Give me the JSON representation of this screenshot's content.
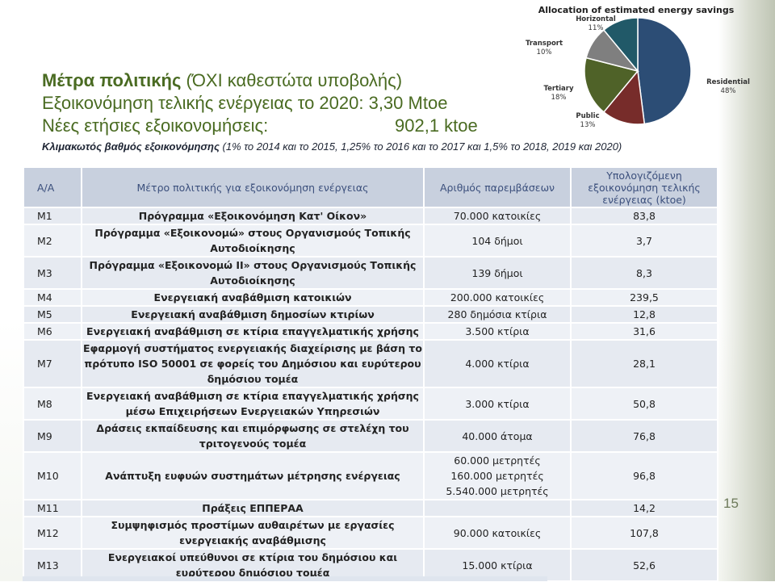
{
  "title": {
    "line1_bold": "Μέτρα πολιτικής",
    "line1_rest": " (ΌΧΙ καθεστώτα υποβολής)",
    "line2": "Εξοικονόμηση τελικής ενέργειας το 2020: 3,30 Mtoe",
    "line3_label": "Νέες ετήσιες εξοικονομήσεις:",
    "line3_value": "902,1 ktoe",
    "subtitle_bold": "Κλιμακωτός βαθμός εξοικονόμησης",
    "subtitle_rest": " (1% το 2014 και το 2015, 1,25% το 2016 και το 2017 και 1,5% το 2018, 2019 και 2020)"
  },
  "chart_data": {
    "type": "pie",
    "title": "Allocation of estimated energy savings",
    "slices": [
      {
        "label": "Residential",
        "value": 48,
        "color": "#2c4d75"
      },
      {
        "label": "Public",
        "value": 13,
        "color": "#772c2a"
      },
      {
        "label": "Tertiary",
        "value": 18,
        "color": "#4f6228"
      },
      {
        "label": "Transport",
        "value": 10,
        "color": "#7f7f7f"
      },
      {
        "label": "Horizontal",
        "value": 11,
        "color": "#215968"
      }
    ],
    "value_labels": [
      "48%",
      "13%",
      "18%",
      "10%",
      "11%"
    ]
  },
  "table": {
    "headers": {
      "id": "Α/Α",
      "measure": "Μέτρο πολιτικής για εξοικονόμηση ενέργειας",
      "interventions": "Αριθμός παρεμβάσεων",
      "savings": "Υπολογιζόμενη εξοικονόμηση τελικής ενέργειας (ktoe)"
    },
    "rows": [
      {
        "id": "Μ1",
        "measure": "Πρόγραμμα «Εξοικονόμηση Κατ' Οίκον»",
        "interventions": "70.000 κατοικίες",
        "savings": "83,8"
      },
      {
        "id": "Μ2",
        "measure": "Πρόγραμμα «Εξοικονομώ» στους Οργανισμούς Τοπικής Αυτοδιοίκησης",
        "interventions": "104 δήμοι",
        "savings": "3,7"
      },
      {
        "id": "Μ3",
        "measure": "Πρόγραμμα «Εξοικονομώ ΙΙ» στους Οργανισμούς Τοπικής Αυτοδιοίκησης",
        "interventions": "139 δήμοι",
        "savings": "8,3"
      },
      {
        "id": "Μ4",
        "measure": "Ενεργειακή αναβάθμιση κατοικιών",
        "interventions": "200.000 κατοικίες",
        "savings": "239,5"
      },
      {
        "id": "Μ5",
        "measure": "Ενεργειακή αναβάθμιση δημοσίων κτιρίων",
        "interventions": "280 δημόσια κτίρια",
        "savings": "12,8"
      },
      {
        "id": "Μ6",
        "measure": "Ενεργειακή αναβάθμιση σε κτίρια επαγγελματικής χρήσης",
        "interventions": "3.500 κτίρια",
        "savings": "31,6"
      },
      {
        "id": "Μ7",
        "measure": "Εφαρμογή συστήματος ενεργειακής διαχείρισης με βάση το πρότυπο ISO 50001 σε φορείς του Δημόσιου και ευρύτερου δημόσιου τομέα",
        "interventions": "4.000 κτίρια",
        "savings": "28,1"
      },
      {
        "id": "Μ8",
        "measure": "Ενεργειακή αναβάθμιση σε κτίρια επαγγελματικής χρήσης μέσω Επιχειρήσεων Ενεργειακών Υπηρεσιών",
        "interventions": "3.000 κτίρια",
        "savings": "50,8"
      },
      {
        "id": "Μ9",
        "measure": "Δράσεις εκπαίδευσης και επιμόρφωσης σε στελέχη του τριτογενούς τομέα",
        "interventions": "40.000 άτομα",
        "savings": "76,8"
      },
      {
        "id": "Μ10",
        "measure": "Ανάπτυξη ευφυών συστημάτων μέτρησης ενέργειας",
        "interventions_multi": [
          "60.000 μετρητές",
          "160.000 μετρητές",
          "5.540.000 μετρητές"
        ],
        "savings": "96,8"
      },
      {
        "id": "Μ11",
        "measure": "Πράξεις ΕΠΠΕΡΑΑ",
        "interventions": "",
        "savings": "14,2"
      },
      {
        "id": "Μ12",
        "measure": "Συμψηφισμός προστίμων αυθαιρέτων με εργασίες ενεργειακής αναβάθμισης",
        "interventions": "90.000 κατοικίες",
        "savings": "107,8"
      },
      {
        "id": "Μ13",
        "measure": "Ενεργειακοί υπεύθυνοι σε κτίρια του δημόσιου και ευρύτερου δημόσιου τομέα",
        "interventions": "15.000 κτίρια",
        "savings": "52,6"
      }
    ]
  },
  "slide_number": "15"
}
